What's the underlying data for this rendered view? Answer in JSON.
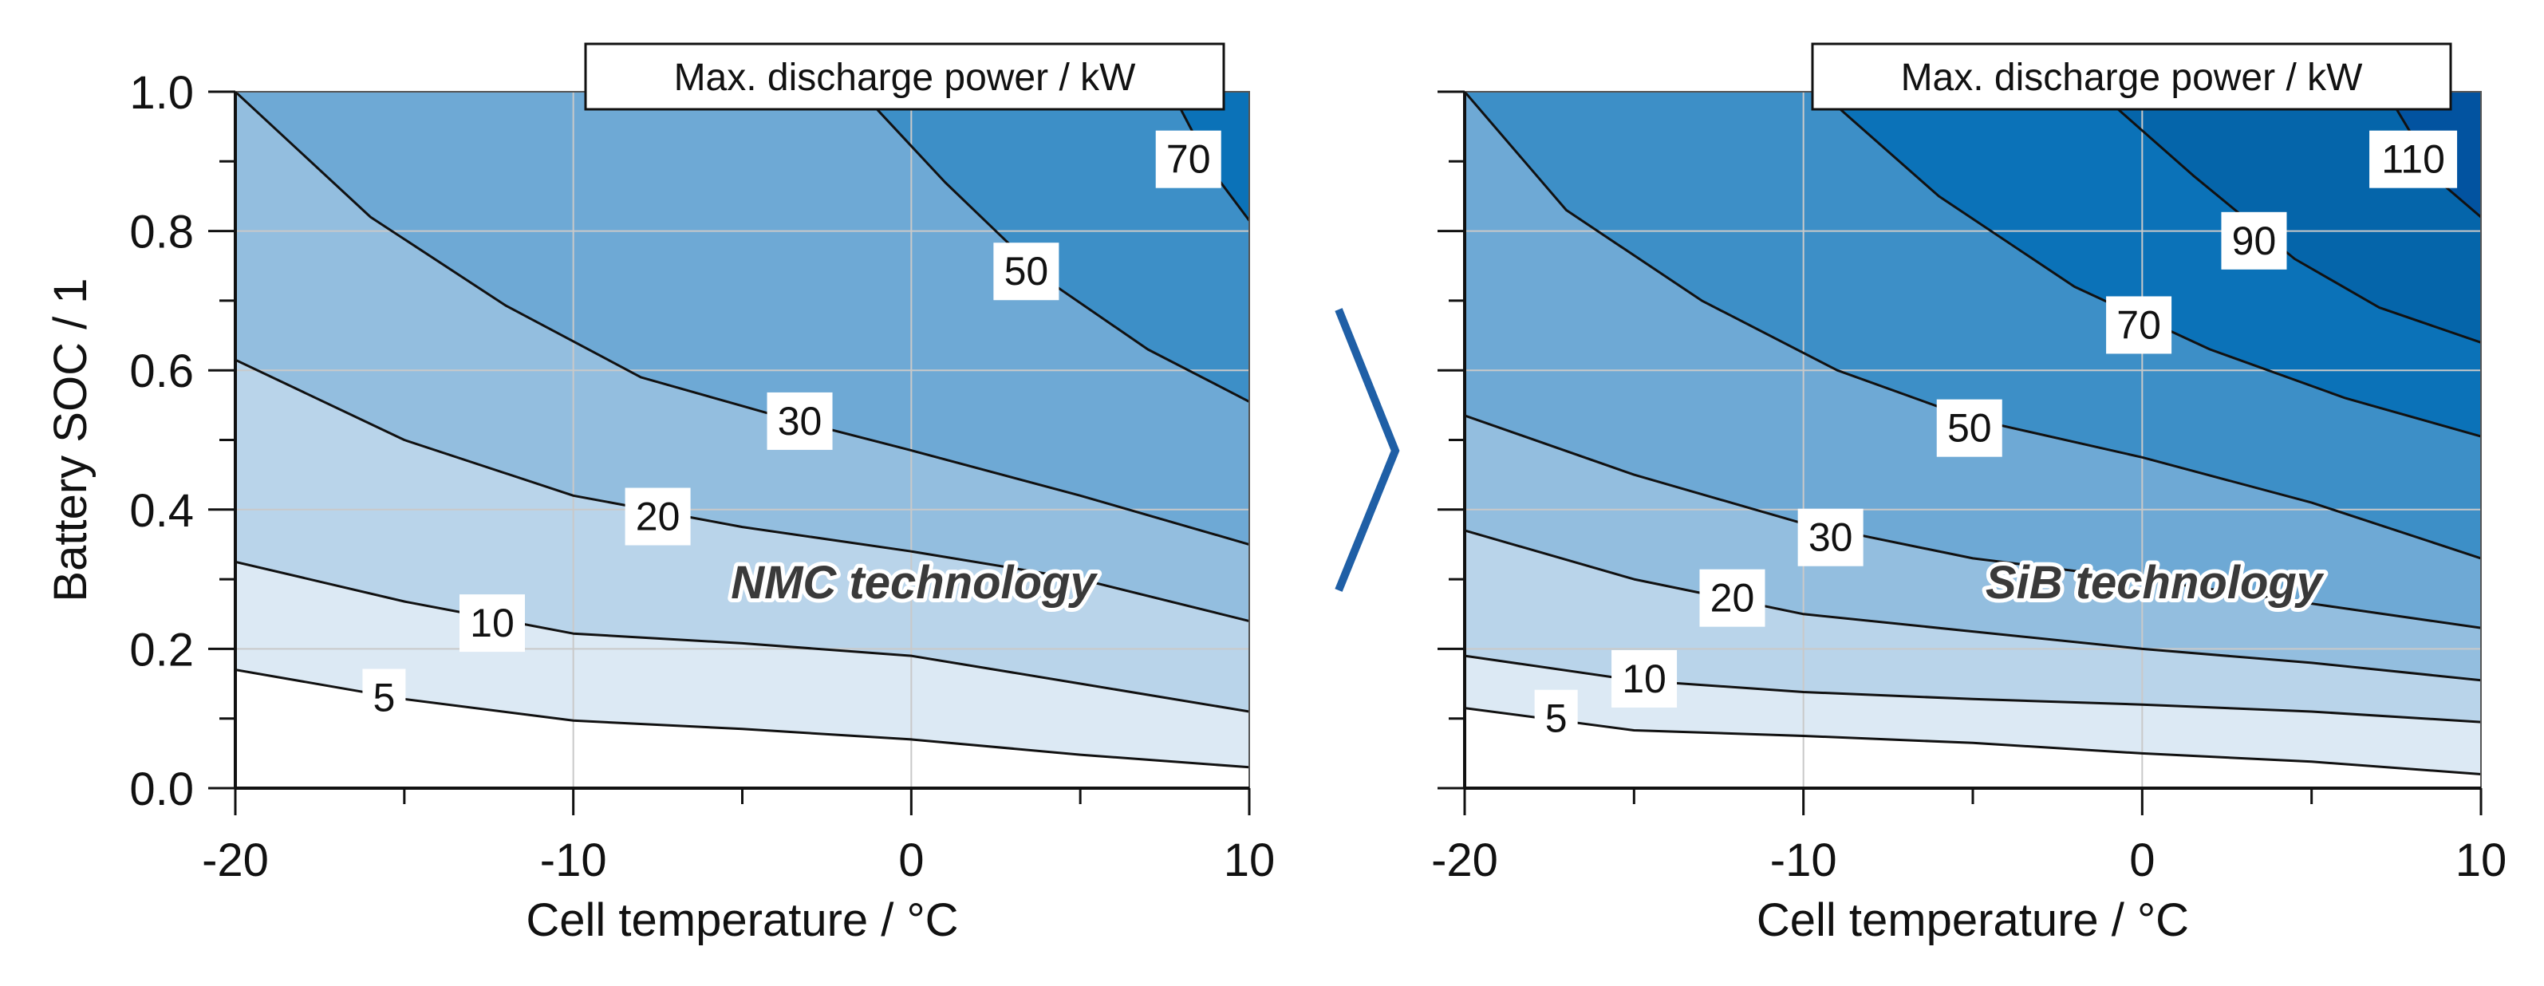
{
  "figure": {
    "arrow_color": "#1f5fa6"
  },
  "chart_data": [
    {
      "type": "contour",
      "title": "Max. discharge power / kW",
      "annotation": "NMC technology",
      "xlabel": "Cell temperature / °C",
      "ylabel": "Battery SOC / 1",
      "xlim": [
        -20,
        10
      ],
      "ylim": [
        0.0,
        1.0
      ],
      "x_ticks": [
        -20,
        -10,
        0,
        10
      ],
      "x_tick_labels": [
        "-20",
        "-10",
        "0",
        "10"
      ],
      "y_ticks": [
        0.0,
        0.2,
        0.4,
        0.6,
        0.8,
        1.0
      ],
      "y_tick_labels": [
        "0.0",
        "0.2",
        "0.4",
        "0.6",
        "0.8",
        "1.0"
      ],
      "grid": true,
      "band_colors": [
        "#ffffff",
        "#dce9f4",
        "#b9d4ea",
        "#93bedf",
        "#6ea9d5",
        "#3d8fc7",
        "#0b72b8"
      ],
      "levels": [
        {
          "level": 5,
          "label": "5",
          "label_at": [
            -15.6,
            0.13
          ],
          "points": [
            [
              -20,
              0.17
            ],
            [
              -15,
              0.128
            ],
            [
              -10,
              0.097
            ],
            [
              -5,
              0.085
            ],
            [
              0,
              0.07
            ],
            [
              5,
              0.048
            ],
            [
              10,
              0.03
            ]
          ]
        },
        {
          "level": 10,
          "label": "10",
          "label_at": [
            -12.4,
            0.237
          ],
          "points": [
            [
              -20,
              0.325
            ],
            [
              -15,
              0.268
            ],
            [
              -10,
              0.222
            ],
            [
              -5,
              0.208
            ],
            [
              0,
              0.19
            ],
            [
              5,
              0.15
            ],
            [
              10,
              0.11
            ]
          ]
        },
        {
          "level": 20,
          "label": "20",
          "label_at": [
            -7.5,
            0.39
          ],
          "points": [
            [
              -20,
              0.615
            ],
            [
              -15,
              0.5
            ],
            [
              -10,
              0.42
            ],
            [
              -5,
              0.375
            ],
            [
              0,
              0.34
            ],
            [
              5,
              0.3
            ],
            [
              10,
              0.24
            ]
          ]
        },
        {
          "level": 30,
          "label": "30",
          "label_at": [
            -3.3,
            0.527
          ],
          "points": [
            [
              -20,
              1.0
            ],
            [
              -16,
              0.82
            ],
            [
              -12,
              0.693
            ],
            [
              -8,
              0.59
            ],
            [
              -4,
              0.535
            ],
            [
              0,
              0.485
            ],
            [
              5,
              0.42
            ],
            [
              10,
              0.35
            ]
          ]
        },
        {
          "level": 50,
          "label": "50",
          "label_at": [
            3.4,
            0.742
          ],
          "points": [
            [
              -1.5,
              1.0
            ],
            [
              1,
              0.87
            ],
            [
              4,
              0.73
            ],
            [
              7,
              0.63
            ],
            [
              10,
              0.555
            ]
          ]
        },
        {
          "level": 70,
          "label": "70",
          "label_at": [
            8.2,
            0.903
          ],
          "points": [
            [
              7.7,
              1.0
            ],
            [
              9,
              0.88
            ],
            [
              10,
              0.815
            ]
          ]
        }
      ]
    },
    {
      "type": "contour",
      "title": "Max. discharge power / kW",
      "annotation": "SiB technology",
      "xlabel": "Cell temperature / °C",
      "ylabel": "",
      "xlim": [
        -20,
        10
      ],
      "ylim": [
        0.0,
        1.0
      ],
      "x_ticks": [
        -20,
        -10,
        0,
        10
      ],
      "x_tick_labels": [
        "-20",
        "-10",
        "0",
        "10"
      ],
      "y_ticks": [
        0.0,
        0.2,
        0.4,
        0.6,
        0.8,
        1.0
      ],
      "y_tick_labels": [],
      "grid": true,
      "band_colors": [
        "#ffffff",
        "#dce9f4",
        "#b9d4ea",
        "#93bedf",
        "#6ea9d5",
        "#3d8fc7",
        "#0b72b8",
        "#0565aa",
        "#0253a0"
      ],
      "levels": [
        {
          "level": 5,
          "label": "5",
          "label_at": [
            -17.3,
            0.1
          ],
          "points": [
            [
              -20,
              0.115
            ],
            [
              -15,
              0.083
            ],
            [
              -10,
              0.075
            ],
            [
              -5,
              0.065
            ],
            [
              0,
              0.05
            ],
            [
              5,
              0.038
            ],
            [
              10,
              0.02
            ]
          ]
        },
        {
          "level": 10,
          "label": "10",
          "label_at": [
            -14.7,
            0.157
          ],
          "points": [
            [
              -20,
              0.19
            ],
            [
              -15,
              0.155
            ],
            [
              -10,
              0.138
            ],
            [
              -5,
              0.128
            ],
            [
              0,
              0.12
            ],
            [
              5,
              0.11
            ],
            [
              10,
              0.095
            ]
          ]
        },
        {
          "level": 20,
          "label": "20",
          "label_at": [
            -12.1,
            0.273
          ],
          "points": [
            [
              -20,
              0.37
            ],
            [
              -15,
              0.3
            ],
            [
              -10,
              0.25
            ],
            [
              -5,
              0.225
            ],
            [
              0,
              0.2
            ],
            [
              5,
              0.18
            ],
            [
              10,
              0.155
            ]
          ]
        },
        {
          "level": 30,
          "label": "30",
          "label_at": [
            -9.2,
            0.36
          ],
          "points": [
            [
              -20,
              0.535
            ],
            [
              -15,
              0.45
            ],
            [
              -10,
              0.38
            ],
            [
              -5,
              0.33
            ],
            [
              0,
              0.3
            ],
            [
              5,
              0.265
            ],
            [
              10,
              0.23
            ]
          ]
        },
        {
          "level": 50,
          "label": "50",
          "label_at": [
            -5.1,
            0.517
          ],
          "points": [
            [
              -20,
              1.0
            ],
            [
              -17,
              0.83
            ],
            [
              -13,
              0.7
            ],
            [
              -9,
              0.6
            ],
            [
              -5,
              0.53
            ],
            [
              0,
              0.475
            ],
            [
              5,
              0.41
            ],
            [
              10,
              0.33
            ]
          ]
        },
        {
          "level": 70,
          "label": "70",
          "label_at": [
            -0.1,
            0.665
          ],
          "points": [
            [
              -9.5,
              1.0
            ],
            [
              -6,
              0.85
            ],
            [
              -2,
              0.72
            ],
            [
              2,
              0.63
            ],
            [
              6,
              0.56
            ],
            [
              10,
              0.505
            ]
          ]
        },
        {
          "level": 90,
          "label": "90",
          "label_at": [
            3.3,
            0.786
          ],
          "points": [
            [
              -1.3,
              1.0
            ],
            [
              1.5,
              0.88
            ],
            [
              4.5,
              0.76
            ],
            [
              7,
              0.69
            ],
            [
              10,
              0.64
            ]
          ]
        },
        {
          "level": 110,
          "label": "110",
          "label_at": [
            8.0,
            0.903
          ],
          "points": [
            [
              7.2,
              1.0
            ],
            [
              8.8,
              0.87
            ],
            [
              10,
              0.82
            ]
          ]
        }
      ]
    }
  ]
}
